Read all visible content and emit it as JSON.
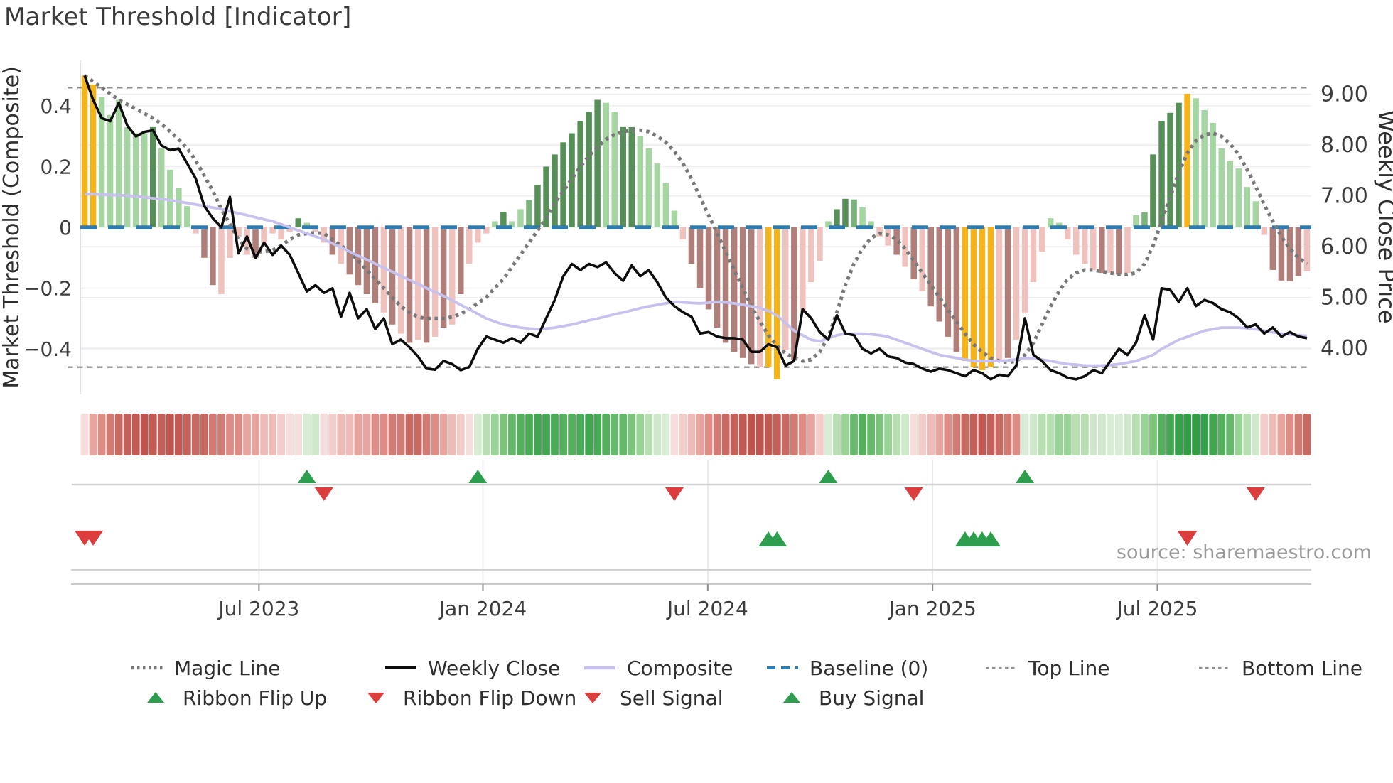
{
  "title": "Market Threshold [Indicator]",
  "source": "source: sharemaestro.com",
  "axes": {
    "left_label": "Market Threshold (Composite)",
    "right_label": "Weekly Close Price",
    "left_tick_labels": [
      "0.4",
      "0.2",
      "0",
      "−0.2",
      "−0.4"
    ],
    "left_tick_values": [
      0.4,
      0.2,
      0,
      -0.2,
      -0.4
    ],
    "right_tick_labels": [
      "9.00",
      "8.00",
      "7.00",
      "6.00",
      "5.00",
      "4.00"
    ],
    "right_tick_values": [
      9,
      8,
      7,
      6,
      5,
      4
    ],
    "x_tick_labels": [
      "Jul 2023",
      "Jan 2024",
      "Jul 2024",
      "Jan 2025",
      "Jul 2025"
    ],
    "x_tick_weeks": [
      20.9,
      47.1,
      73.4,
      99.7,
      126.0
    ]
  },
  "colors": {
    "bar_classes": {
      "y": "#f5b41a",
      "g1": "#a5d6a1",
      "g2": "#7ab37b",
      "g3": "#568f58",
      "p1": "#efc2be",
      "p2": "#b17f7a"
    },
    "weekly_close": "#0d0d0d",
    "composite_line": "#c7c1ed",
    "magic_line": "#787878",
    "baseline": "#2d7db3",
    "top_bottom_line": "#909090",
    "grid": "#ededf1",
    "flip_up_marker": "#2d9e4d",
    "flip_down_marker": "#dc3e3e",
    "buy_marker": "#2d9e4d",
    "sell_marker": "#dc3e3e"
  },
  "chart_data": [
    {
      "type": "bar",
      "name": "market-threshold-composite-panel",
      "title": "Market Threshold [Indicator]",
      "xlabel": "",
      "ylabel": "Market Threshold (Composite)",
      "ylabel_right": "Weekly Close Price",
      "ylim_left": [
        -0.55,
        0.55
      ],
      "ylim_right": [
        3.09,
        9.67
      ],
      "grid": true,
      "baseline": 0,
      "top_line": 0.46,
      "bottom_line": -0.46,
      "n_weeks": 144,
      "bars": {
        "values": [
          0.5,
          0.47,
          0.43,
          0.37,
          0.42,
          0.33,
          0.31,
          0.31,
          0.33,
          0.26,
          0.19,
          0.13,
          0.07,
          -0.02,
          -0.1,
          -0.19,
          -0.22,
          -0.1,
          -0.03,
          -0.09,
          -0.1,
          -0.05,
          -0.02,
          -0.04,
          -0.015,
          0.03,
          0.015,
          -0.015,
          -0.05,
          -0.09,
          -0.12,
          -0.155,
          -0.19,
          -0.22,
          -0.25,
          -0.28,
          -0.32,
          -0.35,
          -0.38,
          -0.37,
          -0.38,
          -0.36,
          -0.33,
          -0.32,
          -0.22,
          -0.12,
          -0.05,
          -0.02,
          0.02,
          0.05,
          0.02,
          0.06,
          0.09,
          0.14,
          0.2,
          0.24,
          0.28,
          0.31,
          0.35,
          0.38,
          0.42,
          0.41,
          0.38,
          0.33,
          0.33,
          0.3,
          0.26,
          0.21,
          0.145,
          0.055,
          -0.04,
          -0.12,
          -0.2,
          -0.27,
          -0.33,
          -0.38,
          -0.41,
          -0.43,
          -0.45,
          -0.46,
          -0.46,
          -0.5,
          -0.405,
          -0.437,
          -0.28,
          -0.18,
          -0.11,
          0.02,
          0.06,
          0.094,
          0.092,
          0.066,
          0.02,
          -0.03,
          -0.06,
          -0.09,
          -0.13,
          -0.17,
          -0.21,
          -0.26,
          -0.31,
          -0.36,
          -0.41,
          -0.44,
          -0.46,
          -0.47,
          -0.46,
          -0.44,
          -0.43,
          -0.37,
          -0.28,
          -0.18,
          -0.08,
          0.03,
          0.015,
          -0.04,
          -0.09,
          -0.12,
          -0.14,
          -0.15,
          -0.15,
          -0.155,
          -0.15,
          0.04,
          0.05,
          0.24,
          0.35,
          0.377,
          0.41,
          0.44,
          0.425,
          0.386,
          0.344,
          0.26,
          0.218,
          0.194,
          0.133,
          0.086,
          -0.025,
          -0.14,
          -0.175,
          -0.177,
          -0.16,
          -0.145
        ],
        "color_class": [
          "y",
          "y",
          "g1",
          "g1",
          "g1",
          "g1",
          "g1",
          "g1",
          "g3",
          "g1",
          "g1",
          "g1",
          "g1",
          "p1",
          "p2",
          "p2",
          "p1",
          "p1",
          "p1",
          "p1",
          "p2",
          "p1",
          "p1",
          "p1",
          "p1",
          "g3",
          "g1",
          "p1",
          "p1",
          "p2",
          "p1",
          "p2",
          "p2",
          "p2",
          "p2",
          "p1",
          "p2",
          "p1",
          "p2",
          "p1",
          "p2",
          "p1",
          "p2",
          "p1",
          "p2",
          "p1",
          "p1",
          "p1",
          "g1",
          "g3",
          "g1",
          "g1",
          "g2",
          "g3",
          "g3",
          "g3",
          "g3",
          "g3",
          "g3",
          "g3",
          "g3",
          "g1",
          "g1",
          "g3",
          "g3",
          "g1",
          "g1",
          "g1",
          "g1",
          "g1",
          "p1",
          "p2",
          "p2",
          "p2",
          "p2",
          "p2",
          "p2",
          "p2",
          "p2",
          "p1",
          "y",
          "y",
          "p1",
          "p2",
          "p1",
          "p1",
          "p1",
          "g1",
          "g3",
          "g3",
          "g2",
          "g1",
          "g1",
          "p1",
          "p1",
          "p2",
          "p1",
          "p2",
          "p1",
          "p2",
          "p2",
          "p2",
          "p2",
          "y",
          "y",
          "y",
          "y",
          "p1",
          "p2",
          "p1",
          "p1",
          "p1",
          "p1",
          "g1",
          "g1",
          "p1",
          "p1",
          "p1",
          "p1",
          "p2",
          "p1",
          "p2",
          "p1",
          "g1",
          "g2",
          "g3",
          "g3",
          "g3",
          "g3",
          "y",
          "g1",
          "g1",
          "g1",
          "g1",
          "g1",
          "g1",
          "g1",
          "g1",
          "p1",
          "p2",
          "p2",
          "p2",
          "p2",
          "p1"
        ]
      },
      "series": [
        {
          "name": "Weekly Close",
          "axis": "right",
          "values": [
            9.37,
            8.89,
            8.53,
            8.47,
            8.83,
            8.38,
            8.17,
            8.26,
            8.29,
            7.99,
            7.9,
            7.93,
            7.64,
            7.34,
            6.8,
            6.56,
            6.38,
            6.98,
            5.87,
            6.2,
            5.78,
            6.08,
            5.84,
            6.02,
            5.84,
            5.48,
            5.12,
            5.24,
            5.09,
            5.18,
            4.62,
            5.09,
            4.59,
            4.77,
            4.38,
            4.59,
            4.08,
            4.17,
            4.02,
            3.84,
            3.6,
            3.58,
            3.75,
            3.69,
            3.57,
            3.63,
            3.99,
            4.23,
            4.17,
            4.11,
            4.2,
            4.11,
            4.29,
            4.23,
            4.59,
            4.95,
            5.42,
            5.66,
            5.54,
            5.66,
            5.6,
            5.69,
            5.48,
            5.33,
            5.63,
            5.42,
            5.54,
            5.3,
            5.0,
            4.83,
            4.71,
            4.62,
            4.29,
            4.32,
            4.23,
            4.2,
            4.2,
            4.17,
            3.93,
            3.93,
            4.08,
            4.02,
            3.66,
            3.75,
            4.77,
            4.59,
            4.32,
            4.17,
            4.65,
            4.29,
            4.26,
            3.99,
            3.9,
            3.99,
            3.84,
            3.81,
            3.72,
            3.69,
            3.6,
            3.54,
            3.6,
            3.57,
            3.51,
            3.45,
            3.57,
            3.51,
            3.39,
            3.48,
            3.45,
            3.66,
            4.59,
            3.87,
            3.75,
            3.57,
            3.51,
            3.42,
            3.39,
            3.45,
            3.57,
            3.51,
            3.75,
            3.99,
            3.87,
            4.11,
            4.65,
            4.17,
            5.18,
            5.15,
            4.91,
            5.18,
            4.83,
            4.95,
            4.89,
            4.77,
            4.71,
            4.59,
            4.41,
            4.47,
            4.29,
            4.41,
            4.23,
            4.32,
            4.23,
            4.2
          ]
        },
        {
          "name": "Composite",
          "axis": "left",
          "values": [
            0.11,
            0.11,
            0.108,
            0.107,
            0.106,
            0.105,
            0.102,
            0.099,
            0.096,
            0.093,
            0.09,
            0.085,
            0.08,
            0.075,
            0.07,
            0.065,
            0.06,
            0.053,
            0.046,
            0.04,
            0.033,
            0.026,
            0.02,
            0.01,
            0.0,
            -0.01,
            -0.02,
            -0.03,
            -0.04,
            -0.053,
            -0.066,
            -0.08,
            -0.093,
            -0.106,
            -0.12,
            -0.133,
            -0.146,
            -0.16,
            -0.173,
            -0.186,
            -0.2,
            -0.213,
            -0.226,
            -0.24,
            -0.255,
            -0.27,
            -0.285,
            -0.3,
            -0.31,
            -0.32,
            -0.325,
            -0.33,
            -0.333,
            -0.335,
            -0.333,
            -0.33,
            -0.325,
            -0.32,
            -0.313,
            -0.306,
            -0.3,
            -0.293,
            -0.286,
            -0.28,
            -0.273,
            -0.266,
            -0.26,
            -0.255,
            -0.25,
            -0.245,
            -0.247,
            -0.249,
            -0.25,
            -0.248,
            -0.245,
            -0.247,
            -0.25,
            -0.255,
            -0.26,
            -0.265,
            -0.275,
            -0.29,
            -0.315,
            -0.34,
            -0.355,
            -0.37,
            -0.375,
            -0.365,
            -0.355,
            -0.35,
            -0.35,
            -0.35,
            -0.352,
            -0.355,
            -0.36,
            -0.37,
            -0.38,
            -0.39,
            -0.4,
            -0.41,
            -0.42,
            -0.425,
            -0.43,
            -0.435,
            -0.44,
            -0.44,
            -0.44,
            -0.44,
            -0.438,
            -0.435,
            -0.43,
            -0.43,
            -0.435,
            -0.44,
            -0.445,
            -0.45,
            -0.452,
            -0.455,
            -0.455,
            -0.455,
            -0.453,
            -0.45,
            -0.445,
            -0.44,
            -0.43,
            -0.42,
            -0.4,
            -0.385,
            -0.37,
            -0.36,
            -0.35,
            -0.34,
            -0.335,
            -0.33,
            -0.33,
            -0.33,
            -0.332,
            -0.335,
            -0.34,
            -0.345,
            -0.35,
            -0.352,
            -0.355,
            -0.357
          ]
        },
        {
          "name": "Magic Line",
          "axis": "left",
          "values": [
            0.5,
            0.48,
            0.46,
            0.44,
            0.42,
            0.405,
            0.39,
            0.375,
            0.36,
            0.34,
            0.315,
            0.29,
            0.26,
            0.22,
            0.17,
            0.12,
            0.06,
            0.01,
            -0.04,
            -0.07,
            -0.08,
            -0.08,
            -0.075,
            -0.06,
            -0.04,
            -0.025,
            -0.02,
            -0.018,
            -0.02,
            -0.04,
            -0.06,
            -0.08,
            -0.11,
            -0.14,
            -0.17,
            -0.2,
            -0.23,
            -0.26,
            -0.28,
            -0.295,
            -0.3,
            -0.3,
            -0.3,
            -0.295,
            -0.285,
            -0.27,
            -0.25,
            -0.23,
            -0.2,
            -0.17,
            -0.13,
            -0.09,
            -0.05,
            -0.01,
            0.03,
            0.08,
            0.12,
            0.16,
            0.2,
            0.235,
            0.265,
            0.29,
            0.305,
            0.315,
            0.32,
            0.32,
            0.315,
            0.3,
            0.28,
            0.25,
            0.21,
            0.16,
            0.1,
            0.04,
            -0.02,
            -0.08,
            -0.14,
            -0.2,
            -0.26,
            -0.31,
            -0.355,
            -0.39,
            -0.415,
            -0.43,
            -0.44,
            -0.435,
            -0.41,
            -0.36,
            -0.28,
            -0.19,
            -0.12,
            -0.07,
            -0.035,
            -0.02,
            -0.025,
            -0.04,
            -0.07,
            -0.11,
            -0.15,
            -0.19,
            -0.23,
            -0.27,
            -0.31,
            -0.35,
            -0.385,
            -0.41,
            -0.43,
            -0.44,
            -0.445,
            -0.44,
            -0.42,
            -0.38,
            -0.32,
            -0.26,
            -0.21,
            -0.17,
            -0.15,
            -0.14,
            -0.14,
            -0.145,
            -0.15,
            -0.155,
            -0.155,
            -0.15,
            -0.12,
            -0.06,
            0.02,
            0.1,
            0.18,
            0.245,
            0.285,
            0.305,
            0.31,
            0.3,
            0.275,
            0.24,
            0.19,
            0.135,
            0.075,
            0.02,
            -0.03,
            -0.07,
            -0.1,
            -0.12
          ]
        }
      ]
    },
    {
      "type": "heatmap",
      "name": "ribbon-strip",
      "cell_colors": [
        "#f6dedd",
        "#e8a59f",
        "#dd8d86",
        "#d07b73",
        "#c96a62",
        "#c3605a",
        "#c05a52",
        "#bd554e",
        "#c05a52",
        "#c3605a",
        "#bd554e",
        "#c05a52",
        "#c3605a",
        "#c96a62",
        "#c96a62",
        "#d07b73",
        "#d07b73",
        "#dd8d86",
        "#dd8d86",
        "#e8a59f",
        "#e8a59f",
        "#eebbb6",
        "#eebbb6",
        "#f3cdc9",
        "#f6dedd",
        "#f6dedd",
        "#d9edd6",
        "#cfe8cc",
        "#f6dedd",
        "#f3cdc9",
        "#eebbb6",
        "#eebbb6",
        "#e8a59f",
        "#e8a59f",
        "#dd8d86",
        "#dd8d86",
        "#d07b73",
        "#d07b73",
        "#c96a62",
        "#c96a62",
        "#d07b73",
        "#dd8d86",
        "#e8a59f",
        "#eebbb6",
        "#f3cdc9",
        "#f6dedd",
        "#d9edd6",
        "#b7dfb2",
        "#99d396",
        "#7cc47c",
        "#66b96a",
        "#55b05e",
        "#4aab56",
        "#42a651",
        "#42a651",
        "#4aab56",
        "#55b05e",
        "#55b05e",
        "#4aab56",
        "#42a651",
        "#4aab56",
        "#55b05e",
        "#66b96a",
        "#66b96a",
        "#7cc47c",
        "#99d396",
        "#b7dfb2",
        "#cfe8cc",
        "#d9edd6",
        "#f6dedd",
        "#f3cdc9",
        "#eebbb6",
        "#e8a59f",
        "#dd8d86",
        "#d07b73",
        "#c96a62",
        "#c3605a",
        "#c05a52",
        "#bd554e",
        "#bd554e",
        "#c05a52",
        "#c3605a",
        "#c96a62",
        "#d07b73",
        "#dd8d86",
        "#e8a59f",
        "#f3cdc9",
        "#d9edd6",
        "#b7dfb2",
        "#99d396",
        "#66b96a",
        "#55b05e",
        "#66b96a",
        "#7cc47c",
        "#99d396",
        "#b7dfb2",
        "#cfe8cc",
        "#f6dedd",
        "#f3cdc9",
        "#eebbb6",
        "#e8a59f",
        "#dd8d86",
        "#d07b73",
        "#c96a62",
        "#c3605a",
        "#c05a52",
        "#c3605a",
        "#c96a62",
        "#d07b73",
        "#dd8d86",
        "#d9edd6",
        "#cfe8cc",
        "#b7dfb2",
        "#b7dfb2",
        "#99d396",
        "#99d396",
        "#b7dfb2",
        "#b7dfb2",
        "#cfe8cc",
        "#cfe8cc",
        "#d9edd6",
        "#d9edd6",
        "#cfe8cc",
        "#b7dfb2",
        "#99d396",
        "#7cc47c",
        "#55b05e",
        "#42a651",
        "#35a14a",
        "#2f9e44",
        "#2f9e44",
        "#35a14a",
        "#42a651",
        "#55b05e",
        "#66b96a",
        "#99d396",
        "#b7dfb2",
        "#cfe8cc",
        "#f3cdc9",
        "#eebbb6",
        "#e8a59f",
        "#dd8d86",
        "#d07b73",
        "#c96a62"
      ]
    },
    {
      "type": "scatter",
      "name": "signal-markers",
      "flip_up_weeks": [
        26,
        46,
        87,
        110
      ],
      "flip_down_weeks": [
        28,
        69,
        97,
        137
      ],
      "buy_weeks": [
        80,
        81,
        103,
        104,
        105,
        106
      ],
      "sell_weeks": [
        0,
        1,
        129
      ]
    }
  ],
  "legend": {
    "row1": [
      {
        "label": "Magic Line",
        "swatch": "magic"
      },
      {
        "label": "Weekly Close",
        "swatch": "weekly"
      },
      {
        "label": "Composite",
        "swatch": "composite"
      },
      {
        "label": "Baseline (0)",
        "swatch": "baseline"
      },
      {
        "label": "Top Line",
        "swatch": "topline"
      },
      {
        "label": "Bottom Line",
        "swatch": "bottomline"
      }
    ],
    "row2": [
      {
        "label": "Ribbon Flip Up",
        "swatch": "tri-up"
      },
      {
        "label": "Ribbon Flip Down",
        "swatch": "tri-down"
      },
      {
        "label": "Sell Signal",
        "swatch": "tri-down"
      },
      {
        "label": "Buy Signal",
        "swatch": "tri-up"
      }
    ]
  }
}
